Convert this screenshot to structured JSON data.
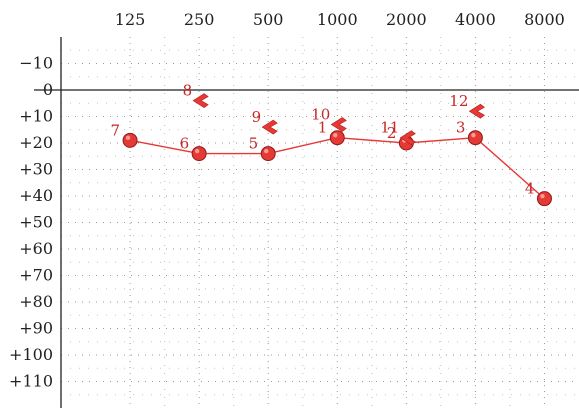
{
  "chart_data": {
    "type": "line",
    "x_axis": {
      "position": "top",
      "scale": "log2",
      "ticks": [
        125,
        250,
        500,
        1000,
        2000,
        4000,
        8000
      ],
      "tick_labels": [
        "125",
        "250",
        "500",
        "1000",
        "2000",
        "4000",
        "8000"
      ]
    },
    "y_axis": {
      "position": "left",
      "inverted": true,
      "ylim": [
        -20,
        120
      ],
      "ticks": [
        -10,
        0,
        10,
        20,
        30,
        40,
        50,
        60,
        70,
        80,
        90,
        100,
        110
      ],
      "tick_labels": [
        "−10",
        "0",
        "+10",
        "+20",
        "+30",
        "+40",
        "+50",
        "+60",
        "+70",
        "+80",
        "+90",
        "+100",
        "+110"
      ]
    },
    "grid": "dotted",
    "reference_line": 0,
    "colors": {
      "series": "#e53935",
      "marker_fill": "#e53935",
      "marker_edge": "#8e1a1a",
      "label": "#c62828",
      "axis": "#222222",
      "grid": "#9a9a9a"
    },
    "series": [
      {
        "marker": "circle",
        "connected": true,
        "points": [
          {
            "label": "7",
            "x": 125,
            "y": 19
          },
          {
            "label": "6",
            "x": 250,
            "y": 24
          },
          {
            "label": "5",
            "x": 500,
            "y": 24
          },
          {
            "label": "1",
            "x": 1000,
            "y": 18
          },
          {
            "label": "2",
            "x": 2000,
            "y": 20
          },
          {
            "label": "3",
            "x": 4000,
            "y": 18
          },
          {
            "label": "4",
            "x": 8000,
            "y": 41
          }
        ]
      },
      {
        "marker": "bracket-left",
        "connected": false,
        "points": [
          {
            "label": "8",
            "x": 250,
            "y": 4
          },
          {
            "label": "9",
            "x": 500,
            "y": 14
          },
          {
            "label": "10",
            "x": 1000,
            "y": 13
          },
          {
            "label": "11",
            "x": 2000,
            "y": 18
          },
          {
            "label": "12",
            "x": 4000,
            "y": 8
          }
        ]
      }
    ]
  }
}
